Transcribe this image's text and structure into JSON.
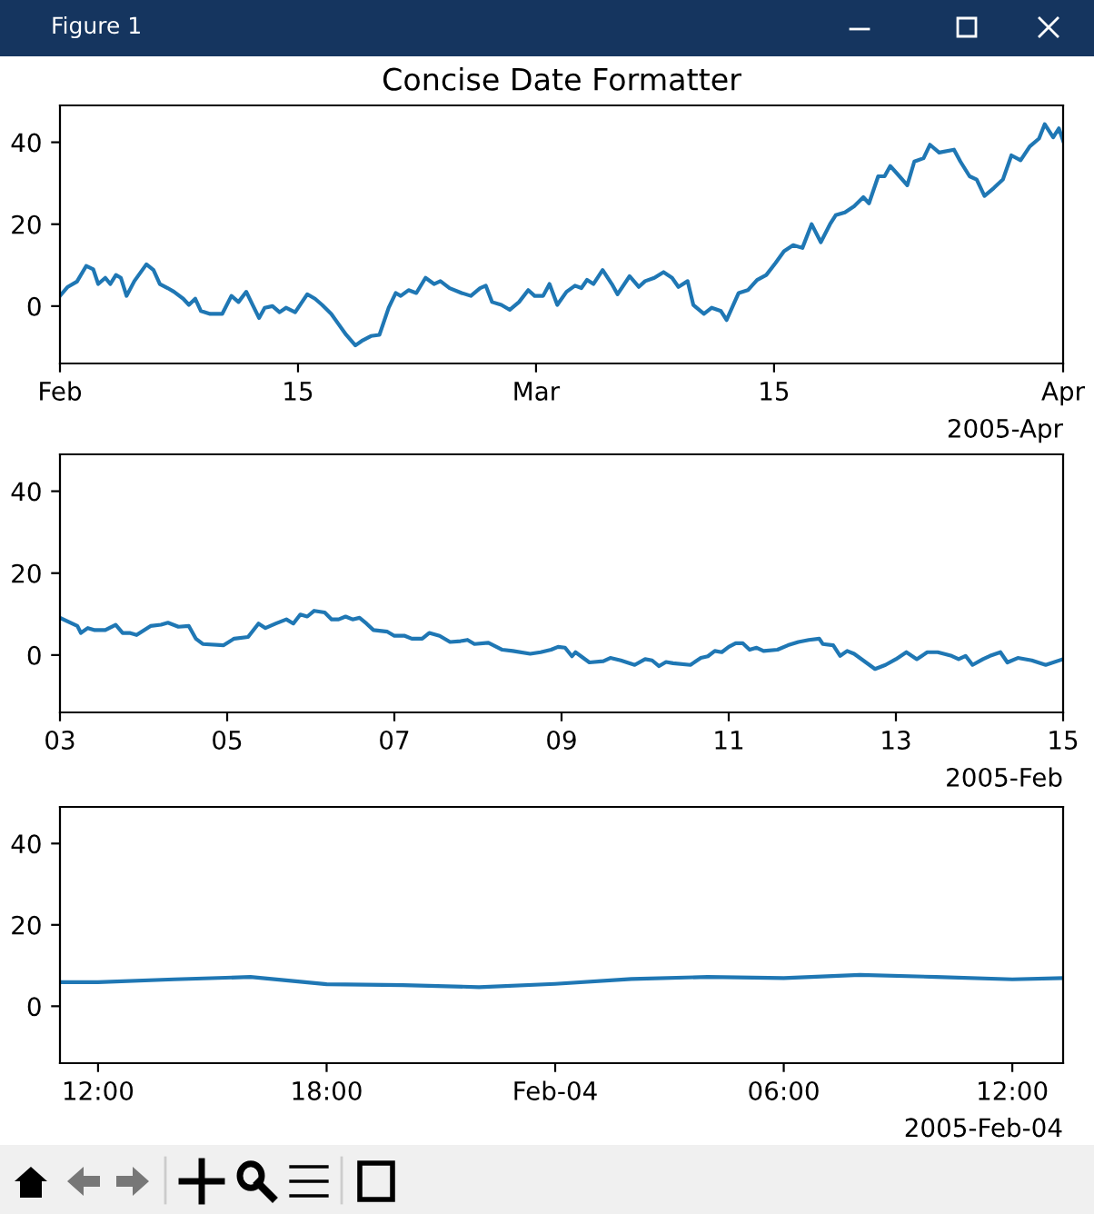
{
  "chart_data": [
    {
      "type": "line",
      "title": "Concise Date Formatter",
      "annotations": [
        "Figure 1",
        "2005-Apr"
      ],
      "x": [
        "2005-02-01T00:00",
        "2005-02-01T11:00",
        "2005-02-02T00:00",
        "2005-02-02T13:00",
        "2005-02-02T23:00",
        "2005-02-03T06:00",
        "2005-02-03T16:00",
        "2005-02-03T23:00",
        "2005-02-04T07:00",
        "2005-02-04T14:00",
        "2005-02-04T22:00",
        "2005-02-05T09:00",
        "2005-02-06T02:00",
        "2005-02-06T12:00",
        "2005-02-06T21:00",
        "2005-02-07T08:00",
        "2005-02-07T17:00",
        "2005-02-08T06:00",
        "2005-02-08T14:00",
        "2005-02-08T23:00",
        "2005-02-09T07:00",
        "2005-02-09T20:00",
        "2005-02-10T13:00",
        "2005-02-11T02:00",
        "2005-02-11T12:00",
        "2005-02-11T23:00",
        "2005-02-12T08:00",
        "2005-02-12T17:00",
        "2005-02-13T01:00",
        "2005-02-13T12:00",
        "2005-02-13T22:00",
        "2005-02-14T07:00",
        "2005-02-14T20:00",
        "2005-02-15T13:00",
        "2005-02-16T00:00",
        "2005-02-16T10:00",
        "2005-02-16T23:00",
        "2005-02-17T08:00",
        "2005-02-17T20:00",
        "2005-02-18T09:00",
        "2005-02-18T18:00",
        "2005-02-19T07:00",
        "2005-02-19T19:00",
        "2005-02-20T08:00",
        "2005-02-20T18:00",
        "2005-02-21T01:00",
        "2005-02-21T12:00",
        "2005-02-21T23:00",
        "2005-02-22T12:00",
        "2005-02-23T00:00",
        "2005-02-23T09:00",
        "2005-02-23T22:00",
        "2005-02-24T15:00",
        "2005-02-25T04:00",
        "2005-02-25T17:00",
        "2005-02-26T01:00",
        "2005-02-26T10:00",
        "2005-02-26T23:00",
        "2005-02-27T11:00",
        "2005-02-28T00:00",
        "2005-02-28T13:00",
        "2005-02-28T22:00",
        "2005-03-01T10:00",
        "2005-03-01T19:00",
        "2005-03-02T06:00",
        "2005-03-02T19:00",
        "2005-03-03T07:00",
        "2005-03-03T16:00",
        "2005-03-04T00:00",
        "2005-03-04T09:00",
        "2005-03-04T22:00",
        "2005-03-05T11:00",
        "2005-03-05T19:00",
        "2005-03-06T12:00",
        "2005-03-07T01:00",
        "2005-03-07T10:00",
        "2005-03-07T23:00",
        "2005-03-08T12:00",
        "2005-03-09T00:00",
        "2005-03-09T09:00",
        "2005-03-09T22:00",
        "2005-03-10T06:00",
        "2005-03-10T21:00",
        "2005-03-11T08:00",
        "2005-03-11T21:00",
        "2005-03-12T05:00",
        "2005-03-12T22:00",
        "2005-03-13T11:00",
        "2005-03-14T00:00",
        "2005-03-14T13:00",
        "2005-03-15T02:00",
        "2005-03-15T14:00",
        "2005-03-16T03:00",
        "2005-03-16T16:00",
        "2005-03-17T05:00",
        "2005-03-17T18:00",
        "2005-03-18T07:00",
        "2005-03-18T15:00",
        "2005-03-19T04:00",
        "2005-03-19T17:00",
        "2005-03-20T06:00",
        "2005-03-20T14:00",
        "2005-03-21T03:00",
        "2005-03-21T12:00",
        "2005-03-21T20:00",
        "2005-03-22T09:00",
        "2005-03-22T20:00",
        "2005-03-23T06:00",
        "2005-03-23T19:00",
        "2005-03-24T04:00",
        "2005-03-24T17:00",
        "2005-03-25T14:00",
        "2005-03-25T23:00",
        "2005-03-26T12:00",
        "2005-03-26T22:00",
        "2005-03-27T09:00",
        "2005-03-27T22:00",
        "2005-03-28T11:00",
        "2005-03-28T23:00",
        "2005-03-29T12:00",
        "2005-03-30T01:00",
        "2005-03-30T14:00",
        "2005-03-30T22:00",
        "2005-03-31T10:00",
        "2005-03-31T18:00",
        "2005-04-01T00:00"
      ],
      "series": [
        {
          "color": "#1f77b4",
          "values": [
            2.5,
            4.7,
            6,
            9.8,
            9,
            5.4,
            6.9,
            5.4,
            7.6,
            6.9,
            2.5,
            6.1,
            10.2,
            8.8,
            5.4,
            4.4,
            3.5,
            1.8,
            0.3,
            1.8,
            -1.2,
            -1.9,
            -1.9,
            2.5,
            1,
            3.5,
            0.3,
            -2.9,
            -0.4,
            0,
            -1.5,
            -0.4,
            -1.5,
            2.9,
            1.8,
            0.3,
            -1.9,
            -4.1,
            -7,
            -9.6,
            -8.5,
            -7.3,
            -7,
            -0.4,
            3.2,
            2.5,
            3.9,
            3.2,
            6.9,
            5.4,
            6.1,
            4.4,
            3.2,
            2.5,
            4.4,
            5,
            1,
            0.3,
            -0.9,
            1,
            3.9,
            2.5,
            2.5,
            5.4,
            0.3,
            3.5,
            5,
            4.4,
            6.4,
            5.4,
            8.8,
            5.4,
            2.9,
            7.3,
            4.7,
            6.1,
            6.9,
            8.3,
            6.9,
            4.7,
            6.1,
            0.3,
            -1.9,
            -0.4,
            -1.2,
            -3.4,
            3.2,
            3.9,
            6.4,
            7.6,
            10.5,
            13.4,
            14.9,
            14.2,
            20,
            15.6,
            20,
            22.2,
            22.9,
            24.4,
            26.6,
            25.1,
            31.7,
            31.7,
            34.2,
            31.7,
            29.5,
            35.3,
            36.1,
            39.4,
            37.5,
            38.2,
            35.3,
            31.7,
            30.9,
            26.9,
            28.8,
            30.9,
            36.8,
            35.6,
            39,
            40.9,
            44.4,
            41.2,
            43.4,
            40.4
          ]
        }
      ],
      "xlim": [
        "2005-02-01",
        "2005-04-01"
      ],
      "xticks": [
        {
          "value": "2005-02-01",
          "label": "Feb"
        },
        {
          "value": "2005-02-15",
          "label": "15"
        },
        {
          "value": "2005-03-01",
          "label": "Mar"
        },
        {
          "value": "2005-03-15",
          "label": "15"
        },
        {
          "value": "2005-04-01",
          "label": "Apr"
        }
      ],
      "ylim": [
        -14,
        49
      ],
      "yticks": [
        0,
        20,
        40
      ]
    },
    {
      "type": "line",
      "annotations": [
        "2005-Feb"
      ],
      "x": [
        "2005-02-03T00:00",
        "2005-02-03T05:00",
        "2005-02-03T06:00",
        "2005-02-03T08:00",
        "2005-02-03T10:00",
        "2005-02-03T13:00",
        "2005-02-03T16:00",
        "2005-02-03T18:00",
        "2005-02-03T20:00",
        "2005-02-03T22:00",
        "2005-02-04T02:00",
        "2005-02-04T05:00",
        "2005-02-04T07:00",
        "2005-02-04T10:00",
        "2005-02-04T13:00",
        "2005-02-04T15:00",
        "2005-02-04T17:00",
        "2005-02-04T23:00",
        "2005-02-05T02:00",
        "2005-02-05T06:00",
        "2005-02-05T09:00",
        "2005-02-05T11:00",
        "2005-02-05T14:00",
        "2005-02-05T17:00",
        "2005-02-05T19:00",
        "2005-02-05T21:00",
        "2005-02-05T23:00",
        "2005-02-06T01:00",
        "2005-02-06T04:00",
        "2005-02-06T06:00",
        "2005-02-06T08:00",
        "2005-02-06T10:00",
        "2005-02-06T12:00",
        "2005-02-06T14:00",
        "2005-02-06T16:00",
        "2005-02-06T18:00",
        "2005-02-06T22:00",
        "2005-02-07T00:00",
        "2005-02-07T03:00",
        "2005-02-07T05:00",
        "2005-02-07T08:00",
        "2005-02-07T10:00",
        "2005-02-07T13:00",
        "2005-02-07T16:00",
        "2005-02-07T19:00",
        "2005-02-07T21:00",
        "2005-02-07T23:00",
        "2005-02-08T03:00",
        "2005-02-08T07:00",
        "2005-02-08T10:00",
        "2005-02-08T15:00",
        "2005-02-08T18:00",
        "2005-02-08T21:00",
        "2005-02-08T23:00",
        "2005-02-09T01:00",
        "2005-02-09T03:00",
        "2005-02-09T04:00",
        "2005-02-09T08:00",
        "2005-02-09T12:00",
        "2005-02-09T14:00",
        "2005-02-09T17:00",
        "2005-02-09T21:00",
        "2005-02-10T00:00",
        "2005-02-10T02:00",
        "2005-02-10T04:00",
        "2005-02-10T06:00",
        "2005-02-10T08:00",
        "2005-02-10T13:00",
        "2005-02-10T16:00",
        "2005-02-10T18:00",
        "2005-02-10T20:00",
        "2005-02-10T22:00",
        "2005-02-11T00:00",
        "2005-02-11T02:00",
        "2005-02-11T04:00",
        "2005-02-11T06:00",
        "2005-02-11T08:00",
        "2005-02-11T10:00",
        "2005-02-11T14:00",
        "2005-02-11T17:00",
        "2005-02-11T20:00",
        "2005-02-11T23:00",
        "2005-02-12T02:00",
        "2005-02-12T03:00",
        "2005-02-12T06:00",
        "2005-02-12T08:00",
        "2005-02-12T10:00",
        "2005-02-12T12:00",
        "2005-02-12T18:00",
        "2005-02-12T21:00",
        "2005-02-13T00:00",
        "2005-02-13T03:00",
        "2005-02-13T06:00",
        "2005-02-13T09:00",
        "2005-02-13T12:00",
        "2005-02-13T16:00",
        "2005-02-13T18:00",
        "2005-02-13T20:00",
        "2005-02-13T22:00",
        "2005-02-14T01:00",
        "2005-02-14T03:00",
        "2005-02-14T06:00",
        "2005-02-14T08:00",
        "2005-02-14T11:00",
        "2005-02-14T15:00",
        "2005-02-14T19:00",
        "2005-02-15T00:00"
      ],
      "series": [
        {
          "color": "#1f77b4",
          "values": [
            9.1,
            7.1,
            5.4,
            6.6,
            6.1,
            6.1,
            7.4,
            5.4,
            5.4,
            4.9,
            7.1,
            7.4,
            7.9,
            6.9,
            7.1,
            4,
            2.7,
            2.4,
            4,
            4.4,
            7.7,
            6.6,
            7.7,
            8.7,
            7.7,
            9.9,
            9.4,
            10.8,
            10.4,
            8.7,
            8.7,
            9.4,
            8.7,
            9.1,
            7.7,
            6.1,
            5.7,
            4.7,
            4.7,
            4,
            4,
            5.4,
            4.7,
            3.2,
            3.4,
            3.7,
            2.7,
            3,
            1.3,
            1,
            0.3,
            0.7,
            1.3,
            2,
            1.8,
            -0.3,
            0.7,
            -1.8,
            -1.5,
            -0.7,
            -1.3,
            -2.4,
            -1,
            -1.3,
            -2.7,
            -1.7,
            -2,
            -2.4,
            -0.7,
            -0.3,
            1,
            0.7,
            2,
            2.9,
            2.9,
            1.3,
            1.8,
            1,
            1.3,
            2.4,
            3.2,
            3.7,
            4,
            2.7,
            2.4,
            -0.2,
            1,
            0.3,
            -3.4,
            -2.4,
            -1,
            0.7,
            -1,
            0.7,
            0.7,
            -0.2,
            -1,
            -0.2,
            -2.4,
            -1,
            -0.2,
            0.7,
            -1.8,
            -0.7,
            -1.3,
            -2.4,
            -1
          ]
        }
      ],
      "xlim": [
        "2005-02-03",
        "2005-02-15"
      ],
      "xticks": [
        {
          "value": "2005-02-03",
          "label": "03"
        },
        {
          "value": "2005-02-05",
          "label": "05"
        },
        {
          "value": "2005-02-07",
          "label": "07"
        },
        {
          "value": "2005-02-09",
          "label": "09"
        },
        {
          "value": "2005-02-11",
          "label": "11"
        },
        {
          "value": "2005-02-13",
          "label": "13"
        },
        {
          "value": "2005-02-15",
          "label": "15"
        }
      ],
      "ylim": [
        -14,
        49
      ],
      "yticks": [
        0,
        20,
        40
      ]
    },
    {
      "type": "line",
      "annotations": [
        "2005-Feb-04"
      ],
      "x": [
        "2005-02-03T11:00",
        "2005-02-03T12:00",
        "2005-02-03T14:00",
        "2005-02-03T16:00",
        "2005-02-03T18:00",
        "2005-02-03T20:00",
        "2005-02-03T22:00",
        "2005-02-04T00:00",
        "2005-02-04T02:00",
        "2005-02-04T04:00",
        "2005-02-04T06:00",
        "2005-02-04T08:00",
        "2005-02-04T10:00",
        "2005-02-04T12:00",
        "2005-02-04T13:20"
      ],
      "series": [
        {
          "color": "#1f77b4",
          "values": [
            5.9,
            5.9,
            6.6,
            7.2,
            5.4,
            5.2,
            4.7,
            5.5,
            6.7,
            7.2,
            6.9,
            7.7,
            7.2,
            6.6,
            6.9
          ]
        }
      ],
      "xlim": [
        "2005-02-03T11:00",
        "2005-02-04T13:20"
      ],
      "xticks": [
        {
          "value": "2005-02-03T12:00",
          "label": "12:00"
        },
        {
          "value": "2005-02-03T18:00",
          "label": "18:00"
        },
        {
          "value": "2005-02-04T00:00",
          "label": "Feb-04"
        },
        {
          "value": "2005-02-04T06:00",
          "label": "06:00"
        },
        {
          "value": "2005-02-04T12:00",
          "label": "12:00"
        }
      ],
      "ylim": [
        -14,
        49
      ],
      "yticks": [
        0,
        20,
        40
      ]
    }
  ]
}
